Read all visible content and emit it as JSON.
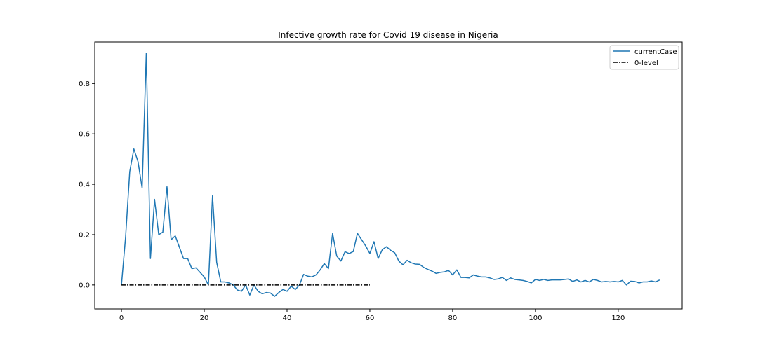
{
  "chart_data": {
    "type": "line",
    "title": "Infective growth rate for Covid 19 disease in Nigeria",
    "xlabel": "",
    "ylabel": "",
    "xlim": [
      -6.45,
      135.45
    ],
    "ylim": [
      -0.095,
      0.965
    ],
    "xticks": [
      0,
      20,
      40,
      60,
      80,
      100,
      120
    ],
    "yticks": [
      0.0,
      0.2,
      0.4,
      0.6,
      0.8
    ],
    "ytick_labels": [
      "0.0",
      "0.2",
      "0.4",
      "0.6",
      "0.8"
    ],
    "grid": false,
    "legend_position": "top-right",
    "series": [
      {
        "name": "currentCase",
        "color": "#1f77b4",
        "style": "solid",
        "values": [
          0.0,
          0.19,
          0.45,
          0.54,
          0.49,
          0.385,
          0.92,
          0.105,
          0.34,
          0.2,
          0.21,
          0.39,
          0.18,
          0.195,
          0.15,
          0.105,
          0.105,
          0.065,
          0.068,
          0.05,
          0.032,
          0.0,
          0.355,
          0.09,
          0.012,
          0.012,
          0.008,
          0.0,
          -0.02,
          -0.025,
          0.0,
          -0.04,
          0.0,
          -0.025,
          -0.035,
          -0.03,
          -0.032,
          -0.045,
          -0.03,
          -0.018,
          -0.025,
          -0.005,
          -0.018,
          0.0,
          0.042,
          0.035,
          0.032,
          0.04,
          0.06,
          0.085,
          0.065,
          0.205,
          0.115,
          0.095,
          0.132,
          0.125,
          0.133,
          0.205,
          0.18,
          0.155,
          0.125,
          0.172,
          0.105,
          0.14,
          0.152,
          0.138,
          0.128,
          0.095,
          0.08,
          0.098,
          0.088,
          0.083,
          0.082,
          0.07,
          0.062,
          0.055,
          0.046,
          0.05,
          0.052,
          0.058,
          0.04,
          0.06,
          0.03,
          0.03,
          0.028,
          0.04,
          0.035,
          0.032,
          0.032,
          0.028,
          0.022,
          0.024,
          0.03,
          0.018,
          0.028,
          0.022,
          0.02,
          0.018,
          0.014,
          0.008,
          0.022,
          0.018,
          0.022,
          0.018,
          0.02,
          0.02,
          0.02,
          0.022,
          0.024,
          0.014,
          0.02,
          0.012,
          0.018,
          0.012,
          0.022,
          0.018,
          0.012,
          0.014,
          0.012,
          0.014,
          0.012,
          0.018,
          0.0,
          0.015,
          0.014,
          0.008,
          0.012,
          0.012,
          0.016,
          0.012,
          0.02
        ]
      },
      {
        "name": "0-level",
        "color": "#000000",
        "style": "dashdot",
        "x": [
          0,
          60
        ],
        "values": [
          0.0,
          0.0
        ]
      }
    ]
  }
}
